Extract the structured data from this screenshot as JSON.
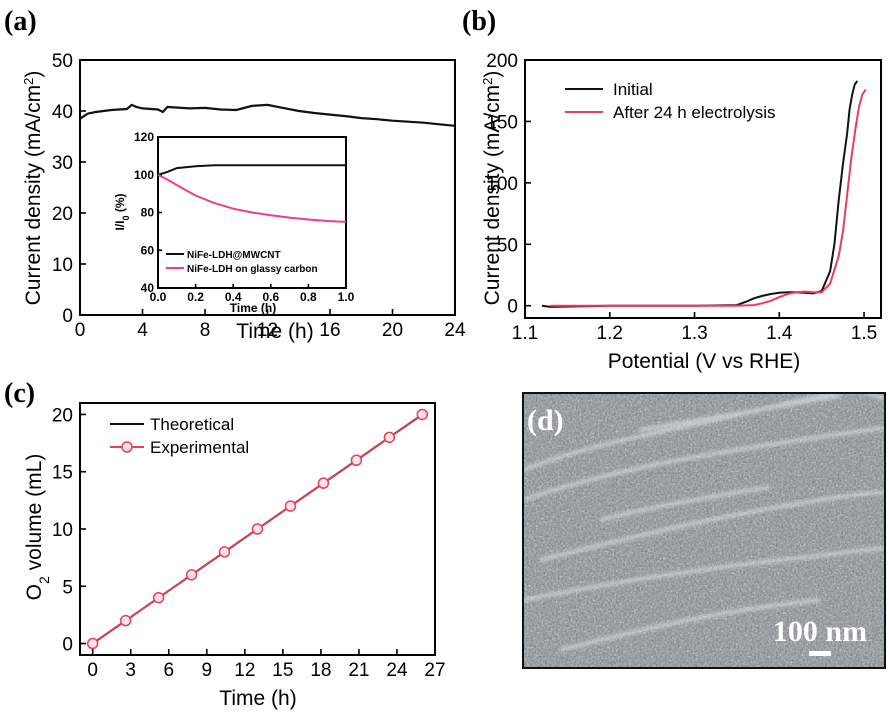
{
  "panels": {
    "a": {
      "label": "(a)"
    },
    "b": {
      "label": "(b)"
    },
    "c": {
      "label": "(c)"
    },
    "d": {
      "label": "(d)",
      "overlay_label": "(d)",
      "scale_bar_text": "100 nm"
    }
  },
  "colors": {
    "black_series": "#111111",
    "pink_series": "#ee3d8f",
    "red_series": "#ec3d5b",
    "sem_background": "#7f8a8c"
  },
  "chart_data": [
    {
      "id": "a",
      "type": "line",
      "xlabel": "Time (h)",
      "ylabel": "Current density (mA/cm2)",
      "xlim": [
        0,
        24
      ],
      "ylim": [
        0,
        50
      ],
      "xticks": [
        "0",
        "4",
        "8",
        "12",
        "16",
        "20",
        "24"
      ],
      "yticks": [
        "0",
        "10",
        "20",
        "30",
        "40",
        "50"
      ],
      "series": [
        {
          "x": [
            0,
            0.5,
            1,
            2,
            3,
            3.3,
            3.6,
            4,
            5,
            5.3,
            5.6,
            6,
            7,
            8,
            9,
            10,
            11,
            12,
            13,
            14,
            15,
            16,
            17,
            18,
            19,
            20,
            21,
            22,
            23,
            24
          ],
          "y": [
            38.5,
            39.5,
            39.8,
            40.2,
            40.4,
            41.2,
            40.8,
            40.5,
            40.3,
            39.8,
            40.8,
            40.7,
            40.5,
            40.6,
            40.3,
            40.2,
            41.0,
            41.2,
            40.6,
            40.0,
            39.6,
            39.3,
            39.0,
            38.6,
            38.4,
            38.1,
            37.9,
            37.7,
            37.4,
            37.1
          ]
        }
      ],
      "inset": {
        "xlabel": "Time (h)",
        "ylabel": "I/I0 (%)",
        "xlim": [
          0,
          1
        ],
        "ylim": [
          40,
          120
        ],
        "xticks": [
          "0.0",
          "0.2",
          "0.4",
          "0.6",
          "0.8",
          "1.0"
        ],
        "yticks": [
          "40",
          "60",
          "80",
          "100",
          "120"
        ],
        "series": [
          {
            "name": "NiFe-LDH@MWCNT",
            "x": [
              0,
              0.05,
              0.1,
              0.2,
              0.3,
              0.4,
              0.5,
              0.6,
              0.7,
              0.8,
              0.9,
              1.0
            ],
            "y": [
              100,
              101.5,
              103.5,
              104.5,
              105,
              105,
              105,
              105,
              105,
              105,
              105,
              105
            ]
          },
          {
            "name": "NiFe-LDH on glassy carbon",
            "x": [
              0,
              0.05,
              0.1,
              0.2,
              0.3,
              0.4,
              0.5,
              0.6,
              0.7,
              0.8,
              0.9,
              1.0
            ],
            "y": [
              100,
              97.5,
              94.5,
              89,
              85,
              82,
              80,
              78.5,
              77.3,
              76.3,
              75.5,
              75
            ]
          }
        ]
      }
    },
    {
      "id": "b",
      "type": "line",
      "xlabel": "Potential (V vs RHE)",
      "ylabel": "Current density (mA/cm2)",
      "xlim": [
        1.1,
        1.52
      ],
      "ylim": [
        -10,
        200
      ],
      "xticks": [
        "1.1",
        "1.2",
        "1.3",
        "1.4",
        "1.5"
      ],
      "yticks": [
        "0",
        "50",
        "100",
        "150",
        "200"
      ],
      "legend": "top-left",
      "series": [
        {
          "name": "Initial",
          "x": [
            1.12,
            1.13,
            1.2,
            1.3,
            1.35,
            1.36,
            1.37,
            1.38,
            1.39,
            1.4,
            1.41,
            1.42,
            1.43,
            1.44,
            1.45,
            1.46,
            1.465,
            1.47,
            1.475,
            1.48,
            1.483,
            1.486,
            1.489,
            1.492
          ],
          "y": [
            0,
            -1,
            0,
            0,
            0.5,
            3,
            6,
            8,
            9.5,
            10.5,
            11,
            11,
            10.5,
            10,
            12,
            28,
            50,
            85,
            115,
            140,
            160,
            172,
            180,
            183
          ]
        },
        {
          "name": "After 24 h electrolysis",
          "x": [
            1.13,
            1.2,
            1.3,
            1.35,
            1.37,
            1.38,
            1.39,
            1.4,
            1.41,
            1.42,
            1.43,
            1.44,
            1.45,
            1.46,
            1.47,
            1.475,
            1.48,
            1.485,
            1.49,
            1.494,
            1.498,
            1.502
          ],
          "y": [
            0,
            0,
            0,
            0,
            0.5,
            2,
            4,
            7,
            9.5,
            11,
            11.5,
            11,
            11,
            18,
            40,
            60,
            90,
            120,
            145,
            162,
            172,
            176
          ]
        }
      ]
    },
    {
      "id": "c",
      "type": "line",
      "xlabel": "Time (h)",
      "ylabel": "O2 volume (mL)",
      "xlim": [
        -1,
        27
      ],
      "ylim": [
        -1,
        21
      ],
      "xticks": [
        "0",
        "3",
        "6",
        "9",
        "12",
        "15",
        "18",
        "21",
        "24",
        "27"
      ],
      "yticks": [
        "0",
        "5",
        "10",
        "15",
        "20"
      ],
      "legend": "top-left",
      "series": [
        {
          "name": "Theoretical",
          "x": [
            0,
            26
          ],
          "y": [
            0,
            20
          ]
        },
        {
          "name": "Experimental",
          "x": [
            0,
            2.6,
            5.2,
            7.8,
            10.4,
            13,
            15.6,
            18.2,
            20.8,
            23.4,
            26
          ],
          "y": [
            0,
            2,
            4,
            6,
            8,
            10,
            12,
            14,
            16,
            18,
            20
          ]
        }
      ]
    }
  ]
}
